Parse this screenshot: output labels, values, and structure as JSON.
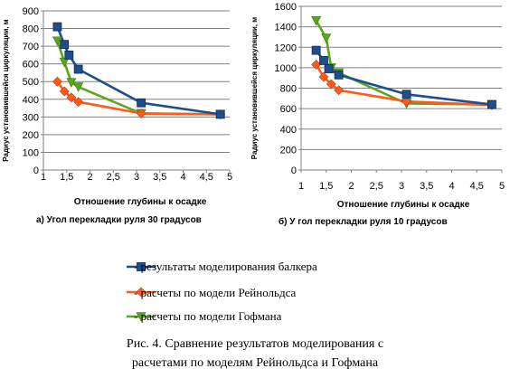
{
  "chart_data": [
    {
      "type": "line",
      "xlabel": "Отношение глубины к осадке",
      "ylabel": "Радиус установившейся циркуляции, м",
      "subtitle": "а) Угол перекладки руля 30 градусов",
      "xlim": [
        1,
        5
      ],
      "ylim": [
        0,
        900
      ],
      "xticks": [
        "1",
        "1,5",
        "2",
        "2,5",
        "3",
        "3,5",
        "4",
        "4,5",
        "5"
      ],
      "yticks": [
        "0",
        "100",
        "200",
        "300",
        "400",
        "500",
        "600",
        "700",
        "800",
        "900"
      ],
      "grid": "horizontal",
      "series": [
        {
          "name": "результаты моделирования балкера",
          "color": "#1f4e8c",
          "marker": "square",
          "points": [
            [
              1.3,
              810
            ],
            [
              1.45,
              710
            ],
            [
              1.55,
              650
            ],
            [
              1.75,
              570
            ],
            [
              3.1,
              380
            ],
            [
              4.8,
              315
            ]
          ]
        },
        {
          "name": "расчеты по модели Рейнольдса",
          "color": "#ff5a1e",
          "marker": "diamond",
          "points": [
            [
              1.3,
              500
            ],
            [
              1.45,
              445
            ],
            [
              1.6,
              410
            ],
            [
              1.75,
              385
            ],
            [
              3.1,
              320
            ],
            [
              4.8,
              315
            ]
          ]
        },
        {
          "name": "расчеты по модели Гофмана",
          "color": "#5ea51e",
          "marker": "triangle",
          "points": [
            [
              1.3,
              730
            ],
            [
              1.45,
              610
            ],
            [
              1.6,
              495
            ],
            [
              1.75,
              470
            ],
            [
              3.1,
              320
            ],
            [
              4.8,
              315
            ]
          ]
        }
      ]
    },
    {
      "type": "line",
      "xlabel": "Отношение глубины к осадке",
      "ylabel": "Радиус установившейся циркуляции, м",
      "subtitle": "б) У гол перекладки руля 10 градусов",
      "xlim": [
        1,
        5
      ],
      "ylim": [
        0,
        1600
      ],
      "xticks": [
        "1",
        "1,5",
        "2",
        "2,5",
        "3",
        "3,5",
        "4",
        "4,5",
        "5"
      ],
      "yticks": [
        "0",
        "200",
        "400",
        "600",
        "800",
        "1000",
        "1200",
        "1400",
        "1600"
      ],
      "grid": "horizontal",
      "series": [
        {
          "name": "результаты моделирования балкера",
          "color": "#1f4e8c",
          "marker": "square",
          "points": [
            [
              1.3,
              1170
            ],
            [
              1.45,
              1070
            ],
            [
              1.55,
              990
            ],
            [
              1.75,
              930
            ],
            [
              3.1,
              740
            ],
            [
              4.8,
              640
            ]
          ]
        },
        {
          "name": "расчеты по модели Рейнольдса",
          "color": "#ff5a1e",
          "marker": "diamond",
          "points": [
            [
              1.3,
              1030
            ],
            [
              1.45,
              910
            ],
            [
              1.6,
              840
            ],
            [
              1.75,
              780
            ],
            [
              3.1,
              670
            ],
            [
              4.8,
              635
            ]
          ]
        },
        {
          "name": "расчеты по модели Гофмана",
          "color": "#5ea51e",
          "marker": "triangle",
          "points": [
            [
              1.3,
              1460
            ],
            [
              1.5,
              1290
            ],
            [
              1.6,
              1000
            ],
            [
              1.75,
              950
            ],
            [
              3.1,
              650
            ],
            [
              4.8,
              640
            ]
          ]
        }
      ]
    }
  ],
  "legend": [
    {
      "label": "-  результаты моделирования балкера",
      "marker": "square",
      "color": "#1f4e8c"
    },
    {
      "label": "-  расчеты по модели Рейнольдса",
      "marker": "diamond",
      "color": "#ff5a1e"
    },
    {
      "label": "-  расчеты по модели Гофмана",
      "marker": "triangle",
      "color": "#5ea51e"
    }
  ],
  "figure_caption": {
    "line1": "Рис. 4. Сравнение результатов моделирования с",
    "line2": "расчетами по моделям Рейнольдса и Гофмана"
  }
}
